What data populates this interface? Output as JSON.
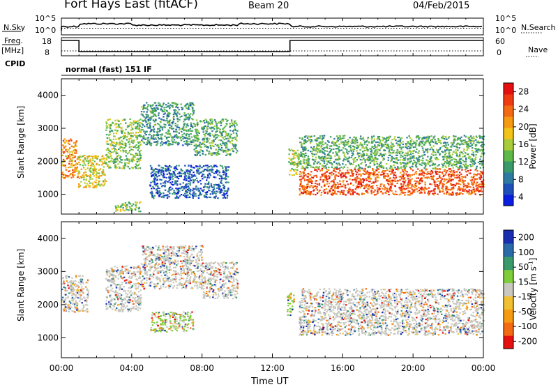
{
  "header": {
    "title": "Fort Hays East (fitACF)",
    "beam": "Beam 20",
    "date": "04/Feb/2015"
  },
  "status_panels": {
    "nsky_label": "N.Sky",
    "nsearch_label": "N.Search",
    "nsky_ticks": [
      "10^5",
      "10^0"
    ],
    "nsearch_ticks": [
      "10^5",
      "10^0"
    ],
    "freq_label": "Freq.",
    "freq_unit": "[MHz]",
    "freq_ticks": [
      "18",
      "8"
    ],
    "nave_label": "Nave",
    "nave_ticks": [
      "60",
      "0"
    ],
    "cpid_label": "CPID",
    "cpid_text": "normal (fast) 151 IF"
  },
  "chart_data": [
    {
      "type": "heatmap",
      "name": "power",
      "ylabel": "Slant Range [km]",
      "yticks": [
        1000,
        2000,
        3000,
        4000
      ],
      "ylim": [
        400,
        4500
      ],
      "xlim": [
        0,
        24
      ],
      "colorbar_label": "Power [dB]",
      "colorbar_ticks": [
        4,
        8,
        12,
        16,
        20,
        24,
        28
      ],
      "colorbar_colors": [
        "#0a1ee0",
        "#1f4fb8",
        "#2f7aa0",
        "#3a9a6a",
        "#5fb84a",
        "#a8cc3a",
        "#f2c419",
        "#f59a12",
        "#f46a12",
        "#f03a12",
        "#e41010"
      ],
      "echo_regions": [
        {
          "t": [
            0.0,
            0.9
          ],
          "r": [
            1500,
            2700
          ],
          "level": 22
        },
        {
          "t": [
            0.9,
            2.5
          ],
          "r": [
            1200,
            2200
          ],
          "level": 18
        },
        {
          "t": [
            2.5,
            4.5
          ],
          "r": [
            1800,
            3300
          ],
          "level": 14
        },
        {
          "t": [
            4.5,
            7.5
          ],
          "r": [
            2500,
            3800
          ],
          "level": 10
        },
        {
          "t": [
            7.5,
            10.0
          ],
          "r": [
            2200,
            3300
          ],
          "level": 12
        },
        {
          "t": [
            5.0,
            9.5
          ],
          "r": [
            900,
            1900
          ],
          "level": 6
        },
        {
          "t": [
            3.0,
            4.5
          ],
          "r": [
            500,
            800
          ],
          "level": 14
        },
        {
          "t": [
            12.9,
            13.5
          ],
          "r": [
            1600,
            2400
          ],
          "level": 16
        },
        {
          "t": [
            13.5,
            24.0
          ],
          "r": [
            1000,
            1800
          ],
          "level": 26
        },
        {
          "t": [
            13.5,
            24.0
          ],
          "r": [
            1800,
            2800
          ],
          "level": 12
        }
      ]
    },
    {
      "type": "heatmap",
      "name": "velocity",
      "ylabel": "Slant Range [km]",
      "yticks": [
        1000,
        2000,
        3000,
        4000
      ],
      "ylim": [
        400,
        4500
      ],
      "xlim": [
        0,
        24
      ],
      "xlabel": "Time UT",
      "xticks": [
        "00:00",
        "04:00",
        "08:00",
        "12:00",
        "16:00",
        "20:00",
        "00:00"
      ],
      "colorbar_label": "Velocity [m s^-1]",
      "colorbar_ticks": [
        200,
        100,
        50,
        15,
        -15,
        -50,
        -100,
        -200
      ],
      "colorbar_colors": [
        "#1a2fb0",
        "#2a6aa8",
        "#3a9a6a",
        "#7fcd3a",
        "#c8c8c0",
        "#f0c030",
        "#f59a12",
        "#f46a12",
        "#e41010"
      ],
      "echo_regions": [
        {
          "t": [
            0.0,
            1.5
          ],
          "r": [
            1800,
            2900
          ],
          "v": 0
        },
        {
          "t": [
            2.5,
            4.5
          ],
          "r": [
            1800,
            3200
          ],
          "v": 0
        },
        {
          "t": [
            4.5,
            8.0
          ],
          "r": [
            2500,
            3800
          ],
          "v": -40
        },
        {
          "t": [
            8.0,
            10.0
          ],
          "r": [
            2200,
            3300
          ],
          "v": 0
        },
        {
          "t": [
            5.0,
            7.5
          ],
          "r": [
            1200,
            1800
          ],
          "v": 40
        },
        {
          "t": [
            12.8,
            13.2
          ],
          "r": [
            1700,
            2400
          ],
          "v": 50
        },
        {
          "t": [
            13.5,
            24.0
          ],
          "r": [
            1100,
            2500
          ],
          "v": 0
        }
      ]
    }
  ]
}
